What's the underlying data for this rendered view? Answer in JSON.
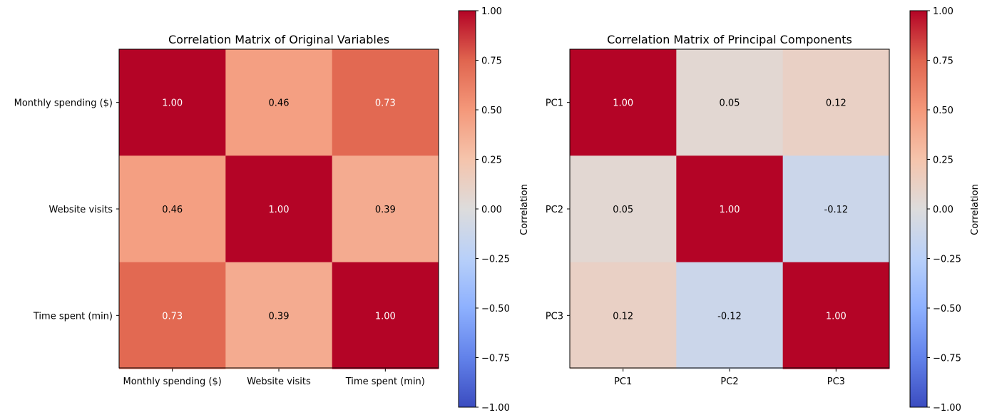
{
  "chart_data": [
    {
      "type": "heatmap",
      "title": "Correlation Matrix of Original Variables",
      "x_categories": [
        "Monthly spending ($)",
        "Website visits",
        "Time spent (min)"
      ],
      "y_categories": [
        "Monthly spending ($)",
        "Website visits",
        "Time spent (min)"
      ],
      "values": [
        [
          1.0,
          0.46,
          0.73
        ],
        [
          0.46,
          1.0,
          0.39
        ],
        [
          0.73,
          0.39,
          1.0
        ]
      ],
      "value_format": "2dp",
      "colormap": "coolwarm",
      "vmin": -1.0,
      "vmax": 1.0,
      "colorbar": {
        "label": "Correlation",
        "ticks": [
          "1.00",
          "0.75",
          "0.50",
          "0.25",
          "0.00",
          "−0.25",
          "−0.50",
          "−0.75",
          "−1.00"
        ]
      }
    },
    {
      "type": "heatmap",
      "title": "Correlation Matrix of Principal Components",
      "x_categories": [
        "PC1",
        "PC2",
        "PC3"
      ],
      "y_categories": [
        "PC1",
        "PC2",
        "PC3"
      ],
      "values": [
        [
          1.0,
          0.05,
          0.12
        ],
        [
          0.05,
          1.0,
          -0.12
        ],
        [
          0.12,
          -0.12,
          1.0
        ]
      ],
      "value_format": "2dp",
      "colormap": "coolwarm",
      "vmin": -1.0,
      "vmax": 1.0,
      "colorbar": {
        "label": "Correlation",
        "ticks": [
          "1.00",
          "0.75",
          "0.50",
          "0.25",
          "0.00",
          "−0.25",
          "−0.50",
          "−0.75",
          "−1.00"
        ]
      }
    }
  ]
}
